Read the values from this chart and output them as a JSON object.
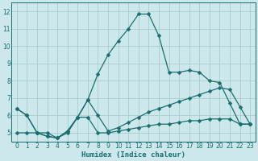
{
  "xlabel": "Humidex (Indice chaleur)",
  "bg_color": "#cce8ec",
  "grid_color": "#aacccc",
  "line_color": "#1a6e6e",
  "xlim": [
    -0.5,
    23.5
  ],
  "ylim": [
    4.5,
    12.5
  ],
  "xticks": [
    0,
    1,
    2,
    3,
    4,
    5,
    6,
    7,
    8,
    9,
    10,
    11,
    12,
    13,
    14,
    15,
    16,
    17,
    18,
    19,
    20,
    21,
    22,
    23
  ],
  "yticks": [
    5,
    6,
    7,
    8,
    9,
    10,
    11,
    12
  ],
  "series1_x": [
    0,
    1,
    2,
    3,
    4,
    5,
    6,
    7,
    8,
    9,
    10,
    11,
    12,
    13,
    14,
    15,
    16,
    17,
    18,
    19,
    20,
    21,
    22,
    23
  ],
  "series1_y": [
    6.4,
    6.0,
    5.0,
    4.8,
    4.7,
    5.1,
    5.9,
    6.9,
    8.4,
    9.5,
    10.3,
    11.0,
    11.85,
    11.85,
    10.6,
    8.5,
    8.5,
    8.6,
    8.5,
    8.0,
    7.9,
    6.7,
    5.5,
    5.5
  ],
  "series2_x": [
    0,
    1,
    2,
    3,
    4,
    5,
    6,
    7,
    8,
    9,
    10,
    11,
    12,
    13,
    14,
    15,
    16,
    17,
    18,
    19,
    20,
    21,
    22,
    23
  ],
  "series2_y": [
    6.4,
    6.0,
    5.0,
    4.8,
    4.7,
    5.1,
    5.9,
    6.9,
    6.0,
    5.1,
    5.3,
    5.6,
    5.9,
    6.2,
    6.4,
    6.6,
    6.8,
    7.0,
    7.2,
    7.4,
    7.6,
    7.5,
    6.5,
    5.5
  ],
  "series3_x": [
    0,
    1,
    2,
    3,
    4,
    5,
    6,
    7,
    8,
    9,
    10,
    11,
    12,
    13,
    14,
    15,
    16,
    17,
    18,
    19,
    20,
    21,
    22,
    23
  ],
  "series3_y": [
    5.0,
    5.0,
    5.0,
    5.0,
    4.7,
    5.0,
    5.9,
    5.9,
    5.0,
    5.0,
    5.1,
    5.2,
    5.3,
    5.4,
    5.5,
    5.5,
    5.6,
    5.7,
    5.7,
    5.8,
    5.8,
    5.8,
    5.5,
    5.5
  ],
  "markersize": 2.5,
  "linewidth": 0.9
}
